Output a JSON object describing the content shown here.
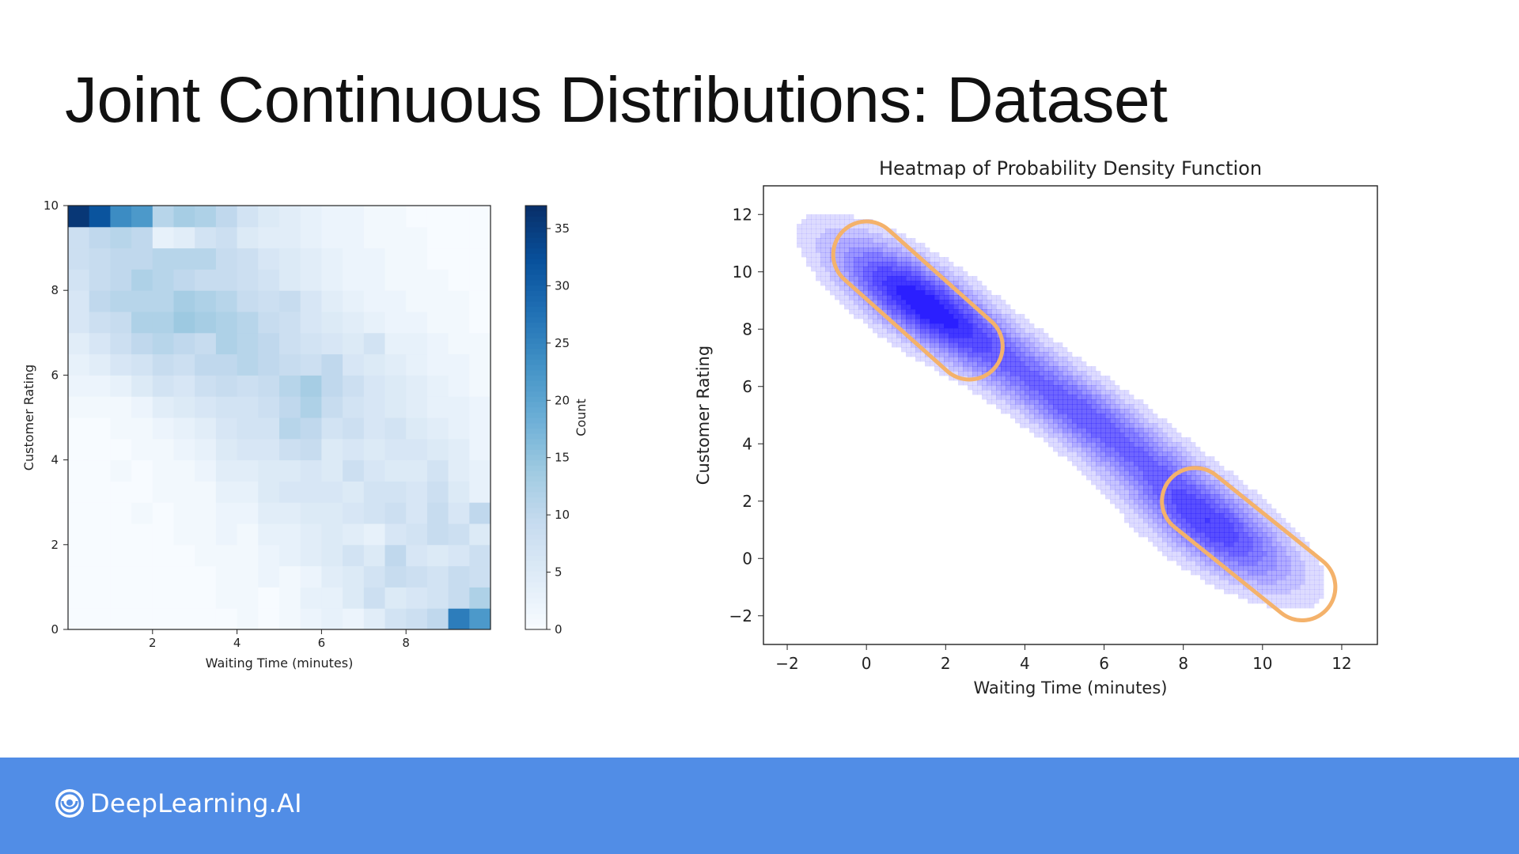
{
  "slide": {
    "title": "Joint Continuous Distributions: Dataset",
    "brand": "DeepLearning.AI",
    "footer_color": "#518de6"
  },
  "chart_data": [
    {
      "type": "heatmap",
      "title": "",
      "xlabel": "Waiting Time (minutes)",
      "ylabel": "Customer Rating",
      "colorbar_label": "Count",
      "colormap": "Blues",
      "xlim": [
        0,
        10
      ],
      "ylim": [
        0,
        10
      ],
      "xticks": [
        2,
        4,
        6,
        8
      ],
      "yticks": [
        0,
        2,
        4,
        6,
        8,
        10
      ],
      "cbar_ticks": [
        0,
        5,
        10,
        15,
        20,
        25,
        30,
        35
      ],
      "vmax": 37,
      "bins": 20,
      "counts": [
        [
          0,
          0,
          0,
          0,
          0,
          0,
          0,
          0,
          1,
          0,
          1,
          2,
          3,
          2,
          4,
          7,
          8,
          10,
          26,
          22
        ],
        [
          0,
          0,
          0,
          0,
          0,
          0,
          0,
          1,
          1,
          0,
          1,
          3,
          3,
          5,
          8,
          5,
          6,
          7,
          9,
          12
        ],
        [
          0,
          0,
          0,
          0,
          0,
          0,
          0,
          1,
          1,
          2,
          1,
          2,
          4,
          5,
          7,
          9,
          8,
          7,
          9,
          8
        ],
        [
          0,
          0,
          0,
          0,
          0,
          0,
          1,
          1,
          1,
          2,
          3,
          4,
          5,
          7,
          5,
          10,
          6,
          5,
          6,
          8
        ],
        [
          0,
          0,
          0,
          0,
          0,
          1,
          1,
          2,
          1,
          3,
          3,
          4,
          5,
          4,
          3,
          6,
          7,
          9,
          8,
          5
        ],
        [
          0,
          0,
          0,
          1,
          0,
          1,
          1,
          2,
          2,
          4,
          4,
          5,
          5,
          6,
          7,
          8,
          6,
          9,
          6,
          10
        ],
        [
          0,
          0,
          0,
          0,
          1,
          1,
          1,
          3,
          3,
          5,
          6,
          6,
          6,
          5,
          7,
          7,
          6,
          8,
          5,
          3
        ],
        [
          0,
          0,
          1,
          0,
          1,
          1,
          2,
          4,
          4,
          5,
          5,
          6,
          5,
          8,
          6,
          5,
          5,
          7,
          4,
          3
        ],
        [
          0,
          0,
          0,
          1,
          1,
          2,
          3,
          5,
          6,
          6,
          8,
          9,
          5,
          6,
          5,
          6,
          6,
          5,
          4,
          2
        ],
        [
          0,
          0,
          1,
          1,
          2,
          3,
          4,
          6,
          7,
          7,
          11,
          10,
          7,
          8,
          6,
          7,
          5,
          4,
          3,
          2
        ],
        [
          1,
          1,
          1,
          2,
          4,
          5,
          6,
          7,
          7,
          8,
          10,
          12,
          9,
          7,
          6,
          5,
          4,
          3,
          3,
          2
        ],
        [
          2,
          2,
          3,
          5,
          7,
          6,
          8,
          9,
          8,
          9,
          11,
          13,
          10,
          8,
          6,
          5,
          4,
          3,
          2,
          1
        ],
        [
          3,
          4,
          6,
          7,
          9,
          8,
          10,
          10,
          11,
          10,
          9,
          8,
          10,
          6,
          5,
          4,
          3,
          2,
          2,
          1
        ],
        [
          4,
          6,
          8,
          10,
          11,
          10,
          9,
          12,
          11,
          10,
          8,
          7,
          6,
          5,
          7,
          3,
          3,
          2,
          1,
          1
        ],
        [
          6,
          8,
          9,
          12,
          12,
          14,
          13,
          12,
          11,
          9,
          8,
          6,
          5,
          4,
          3,
          2,
          2,
          1,
          1,
          0
        ],
        [
          6,
          10,
          11,
          11,
          11,
          13,
          12,
          11,
          9,
          8,
          9,
          6,
          4,
          3,
          2,
          2,
          1,
          1,
          1,
          0
        ],
        [
          7,
          9,
          10,
          12,
          11,
          10,
          9,
          9,
          8,
          7,
          5,
          4,
          3,
          2,
          2,
          1,
          1,
          1,
          0,
          0
        ],
        [
          8,
          9,
          10,
          10,
          11,
          11,
          11,
          9,
          8,
          6,
          5,
          4,
          3,
          2,
          2,
          1,
          1,
          0,
          0,
          0
        ],
        [
          8,
          10,
          11,
          10,
          3,
          4,
          7,
          8,
          5,
          4,
          4,
          3,
          2,
          2,
          1,
          1,
          1,
          0,
          0,
          0
        ],
        [
          36,
          32,
          24,
          22,
          11,
          13,
          12,
          10,
          7,
          5,
          4,
          3,
          2,
          2,
          1,
          1,
          0,
          0,
          0,
          0
        ]
      ]
    },
    {
      "type": "area",
      "subtype": "kde-contour",
      "title": "Heatmap of Probability Density Function",
      "xlabel": "Waiting Time (minutes)",
      "ylabel": "Customer Rating",
      "xlim": [
        -2.6,
        12.9
      ],
      "ylim": [
        -3,
        13
      ],
      "xticks": [
        -2,
        0,
        2,
        4,
        6,
        8,
        10,
        12
      ],
      "yticks": [
        -2,
        0,
        2,
        4,
        6,
        8,
        10,
        12
      ],
      "color": "#2b1fff",
      "levels": 9,
      "components": [
        {
          "mean": [
            1.3,
            9.0
          ],
          "sx": 1.45,
          "sy": 1.45,
          "rho": -0.75,
          "weight": 0.45
        },
        {
          "mean": [
            5.5,
            5.0
          ],
          "sx": 2.0,
          "sy": 2.0,
          "rho": -0.88,
          "weight": 0.32
        },
        {
          "mean": [
            8.8,
            1.0
          ],
          "sx": 1.4,
          "sy": 1.4,
          "rho": -0.7,
          "weight": 0.34
        }
      ],
      "highlights": [
        {
          "from": [
            0.0,
            10.6
          ],
          "to": [
            2.6,
            7.4
          ]
        },
        {
          "from": [
            8.3,
            2.0
          ],
          "to": [
            11.0,
            -1.0
          ]
        }
      ],
      "highlight_color": "#f4b26b"
    }
  ]
}
